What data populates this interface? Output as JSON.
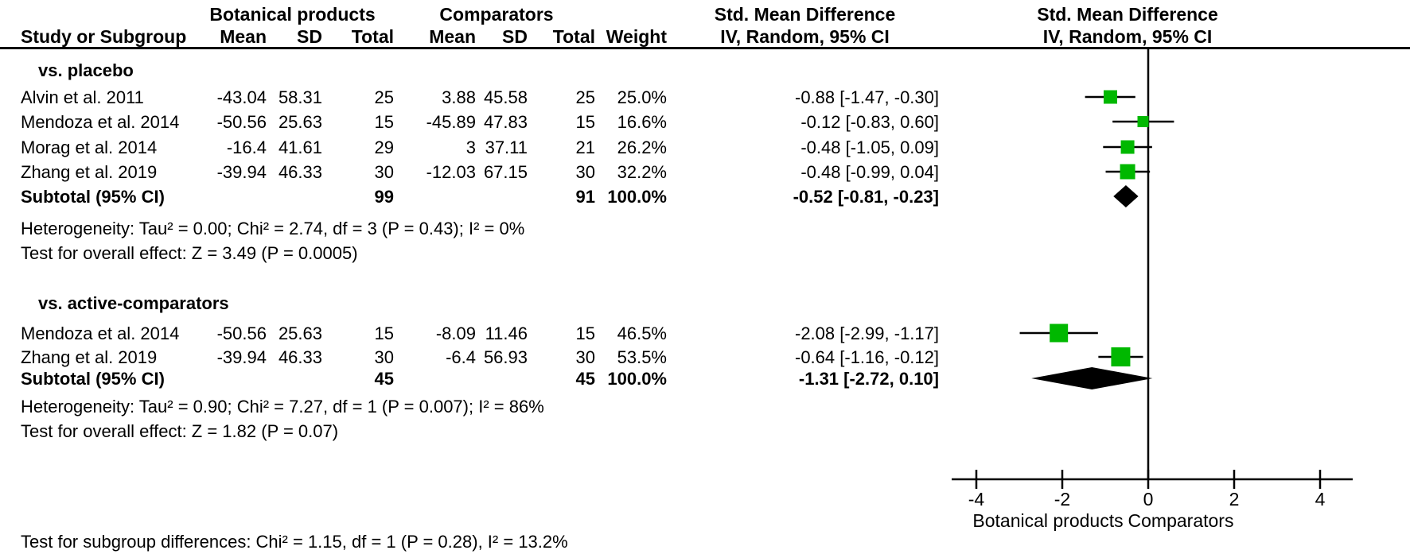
{
  "header": {
    "study": "Study or Subgroup",
    "group1": "Botanical products",
    "group2": "Comparators",
    "smd": "Std. Mean Difference",
    "iv": "IV, Random, 95% CI",
    "cols": {
      "mean": "Mean",
      "sd": "SD",
      "total": "Total",
      "weight": "Weight"
    }
  },
  "groups": [
    {
      "label": "vs. placebo",
      "studies": [
        {
          "name": "Alvin et al. 2011",
          "mean1": "-43.04",
          "sd1": "58.31",
          "total1": "25",
          "mean2": "3.88",
          "sd2": "45.58",
          "total2": "25",
          "weight": "25.0%",
          "ci": "-0.88 [-1.47, -0.30]"
        },
        {
          "name": "Mendoza et al. 2014",
          "mean1": "-50.56",
          "sd1": "25.63",
          "total1": "15",
          "mean2": "-45.89",
          "sd2": "47.83",
          "total2": "15",
          "weight": "16.6%",
          "ci": "-0.12 [-0.83, 0.60]"
        },
        {
          "name": "Morag et al. 2014",
          "mean1": "-16.4",
          "sd1": "41.61",
          "total1": "29",
          "mean2": "3",
          "sd2": "37.11",
          "total2": "21",
          "weight": "26.2%",
          "ci": "-0.48 [-1.05, 0.09]"
        },
        {
          "name": "Zhang et al. 2019",
          "mean1": "-39.94",
          "sd1": "46.33",
          "total1": "30",
          "mean2": "-12.03",
          "sd2": "67.15",
          "total2": "30",
          "weight": "32.2%",
          "ci": "-0.48 [-0.99, 0.04]"
        }
      ],
      "subtotal": {
        "name": "Subtotal (95% CI)",
        "total1": "99",
        "total2": "91",
        "weight": "100.0%",
        "ci": "-0.52 [-0.81, -0.23]"
      },
      "heterogeneity": "Heterogeneity: Tau² = 0.00; Chi² = 2.74, df = 3 (P = 0.43); I² = 0%",
      "overall": "Test for overall effect: Z = 3.49 (P = 0.0005)"
    },
    {
      "label": "vs. active-comparators",
      "studies": [
        {
          "name": "Mendoza et al. 2014",
          "mean1": "-50.56",
          "sd1": "25.63",
          "total1": "15",
          "mean2": "-8.09",
          "sd2": "11.46",
          "total2": "15",
          "weight": "46.5%",
          "ci": "-2.08 [-2.99, -1.17]"
        },
        {
          "name": "Zhang et al. 2019",
          "mean1": "-39.94",
          "sd1": "46.33",
          "total1": "30",
          "mean2": "-6.4",
          "sd2": "56.93",
          "total2": "30",
          "weight": "53.5%",
          "ci": "-0.64 [-1.16, -0.12]"
        }
      ],
      "subtotal": {
        "name": "Subtotal (95% CI)",
        "total1": "45",
        "total2": "45",
        "weight": "100.0%",
        "ci": "-1.31 [-2.72, 0.10]"
      },
      "heterogeneity": "Heterogeneity: Tau² = 0.90; Chi² = 7.27, df = 1 (P = 0.007); I² = 86%",
      "overall": "Test for overall effect: Z = 1.82 (P = 0.07)"
    }
  ],
  "footer": {
    "subgroup_diff": "Test for subgroup differences: Chi² = 1.15, df = 1 (P = 0.28), I² = 13.2%"
  },
  "axis": {
    "left_label": "Botanical products",
    "right_label": "Comparators"
  },
  "colors": {
    "marker_green": "#00b800",
    "line_black": "#000000"
  },
  "chart_data": {
    "type": "forest",
    "title": "Std. Mean Difference",
    "effect_measure": "IV, Random, 95% CI",
    "xlim": [
      -4,
      4
    ],
    "ticks": [
      -4,
      -2,
      0,
      2,
      4
    ],
    "zero_line": 0,
    "x_left_label": "Botanical products",
    "x_right_label": "Comparators",
    "legend_position": "none",
    "grid": false,
    "groups": [
      {
        "name": "vs. placebo",
        "studies": [
          {
            "label": "Alvin et al. 2011",
            "smd": -0.88,
            "ci_low": -1.47,
            "ci_high": -0.3,
            "weight_pct": 25.0
          },
          {
            "label": "Mendoza et al. 2014",
            "smd": -0.12,
            "ci_low": -0.83,
            "ci_high": 0.6,
            "weight_pct": 16.6
          },
          {
            "label": "Morag et al. 2014",
            "smd": -0.48,
            "ci_low": -1.05,
            "ci_high": 0.09,
            "weight_pct": 26.2
          },
          {
            "label": "Zhang et al. 2019",
            "smd": -0.48,
            "ci_low": -0.99,
            "ci_high": 0.04,
            "weight_pct": 32.2
          }
        ],
        "subtotal": {
          "smd": -0.52,
          "ci_low": -0.81,
          "ci_high": -0.23
        }
      },
      {
        "name": "vs. active-comparators",
        "studies": [
          {
            "label": "Mendoza et al. 2014",
            "smd": -2.08,
            "ci_low": -2.99,
            "ci_high": -1.17,
            "weight_pct": 46.5
          },
          {
            "label": "Zhang et al. 2019",
            "smd": -0.64,
            "ci_low": -1.16,
            "ci_high": -0.12,
            "weight_pct": 53.5
          }
        ],
        "subtotal": {
          "smd": -1.31,
          "ci_low": -2.72,
          "ci_high": 0.1
        }
      }
    ]
  }
}
